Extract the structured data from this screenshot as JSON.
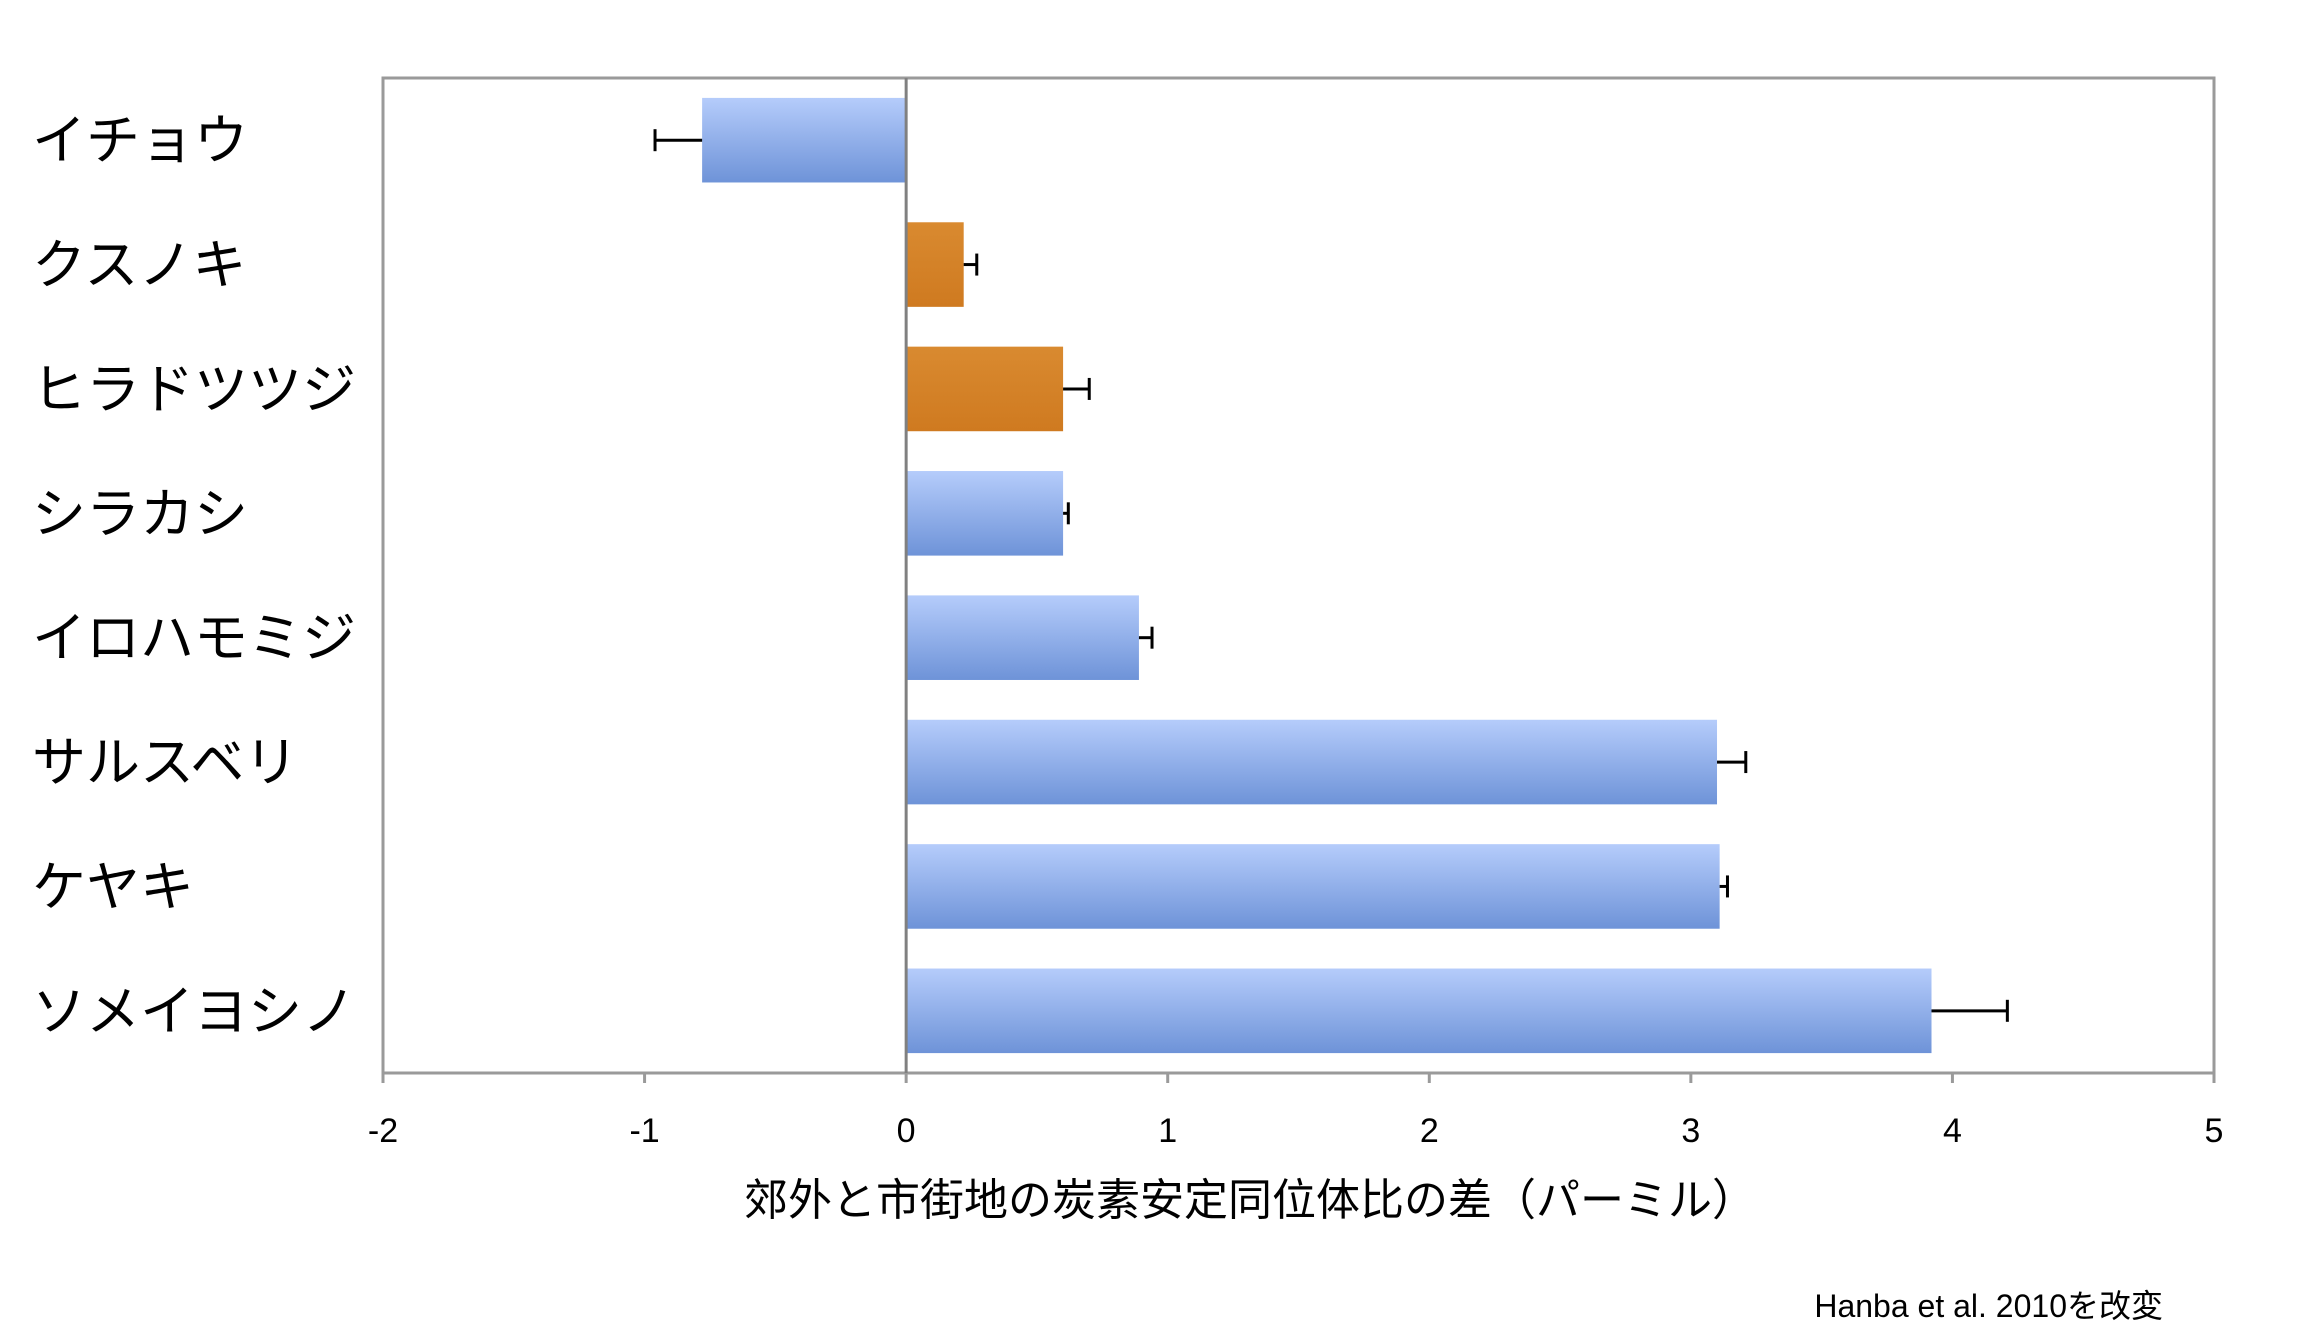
{
  "chart_data": {
    "type": "bar",
    "orientation": "horizontal",
    "categories": [
      "イチョウ",
      "クスノキ",
      "ヒラドツツジ",
      "シラカシ",
      "イロハモミジ",
      "サルスベリ",
      "ケヤキ",
      "ソメイヨシノ"
    ],
    "values": [
      -0.78,
      0.22,
      0.6,
      0.6,
      0.89,
      3.1,
      3.11,
      3.92
    ],
    "errors": [
      0.18,
      0.05,
      0.1,
      0.02,
      0.05,
      0.11,
      0.03,
      0.29
    ],
    "bar_colors": [
      "#8fb0ea",
      "#d58026",
      "#d58026",
      "#8fb0ea",
      "#8fb0ea",
      "#8fb0ea",
      "#8fb0ea",
      "#8fb0ea"
    ],
    "xlabel": "郊外と市街地の炭素安定同位体比の差（パーミル）",
    "xlim": [
      -2,
      5
    ],
    "xticks": [
      "-2",
      "-1",
      "0",
      "1",
      "2",
      "3",
      "4",
      "5"
    ],
    "grid": false,
    "source_note": "Hanba et al. 2010を改変"
  }
}
